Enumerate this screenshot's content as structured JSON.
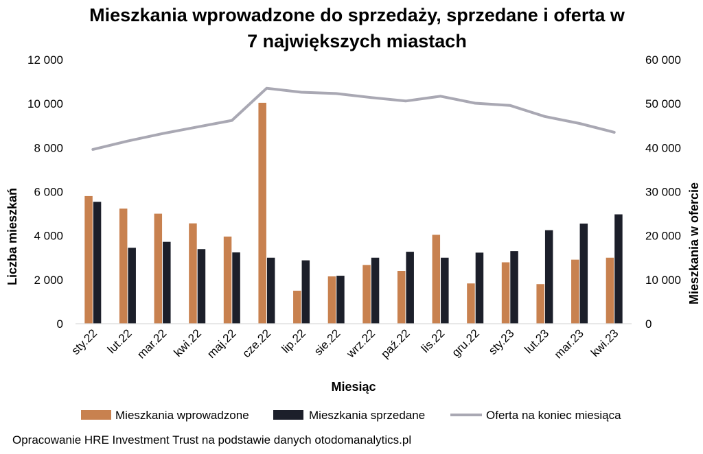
{
  "chart_data": {
    "type": "bar+line",
    "title_lines": [
      "Mieszkania wprowadzone do sprzedaży, sprzedane i oferta w",
      "7 największych miastach"
    ],
    "xlabel": "Miesiąc",
    "ylabel_left": "Liczba mieszkań",
    "ylabel_right": "Mieszkania w ofercie",
    "categories": [
      "sty.22",
      "lut.22",
      "mar.22",
      "kwi.22",
      "maj.22",
      "cze.22",
      "lip.22",
      "sie.22",
      "wrz.22",
      "paź.22",
      "lis.22",
      "gru.22",
      "sty.23",
      "lut.23",
      "mar.23",
      "kwi.23"
    ],
    "ylim_left": [
      0,
      12000
    ],
    "ylim_right": [
      0,
      60000
    ],
    "yticks_left": [
      "0",
      "2 000",
      "4 000",
      "6 000",
      "8 000",
      "10 000",
      "12 000"
    ],
    "yticks_right": [
      "0",
      "10 000",
      "20 000",
      "30 000",
      "40 000",
      "50 000",
      "60 000"
    ],
    "series": [
      {
        "name": "Mieszkania wprowadzone",
        "type": "bar",
        "axis": "left",
        "color": "#C8814F",
        "values": [
          5800,
          5230,
          5000,
          4560,
          3960,
          10040,
          1500,
          2150,
          2670,
          2400,
          4040,
          1830,
          2790,
          1800,
          2910,
          3000
        ]
      },
      {
        "name": "Mieszkania sprzedane",
        "type": "bar",
        "axis": "left",
        "color": "#1C1F2A",
        "values": [
          5540,
          3450,
          3720,
          3390,
          3240,
          3000,
          2880,
          2180,
          3000,
          3270,
          3000,
          3230,
          3300,
          4250,
          4550,
          4970
        ]
      },
      {
        "name": "Oferta na koniec miesiąca",
        "type": "line",
        "axis": "right",
        "color": "#A9A8B3",
        "values": [
          39600,
          41500,
          43200,
          44700,
          46200,
          53500,
          52600,
          52300,
          51400,
          50600,
          51700,
          50100,
          49600,
          47100,
          45500,
          43500
        ]
      }
    ],
    "legend_position": "bottom",
    "grid": false,
    "source": "Opracowanie HRE Investment Trust na podstawie danych otodomanalytics.pl"
  }
}
